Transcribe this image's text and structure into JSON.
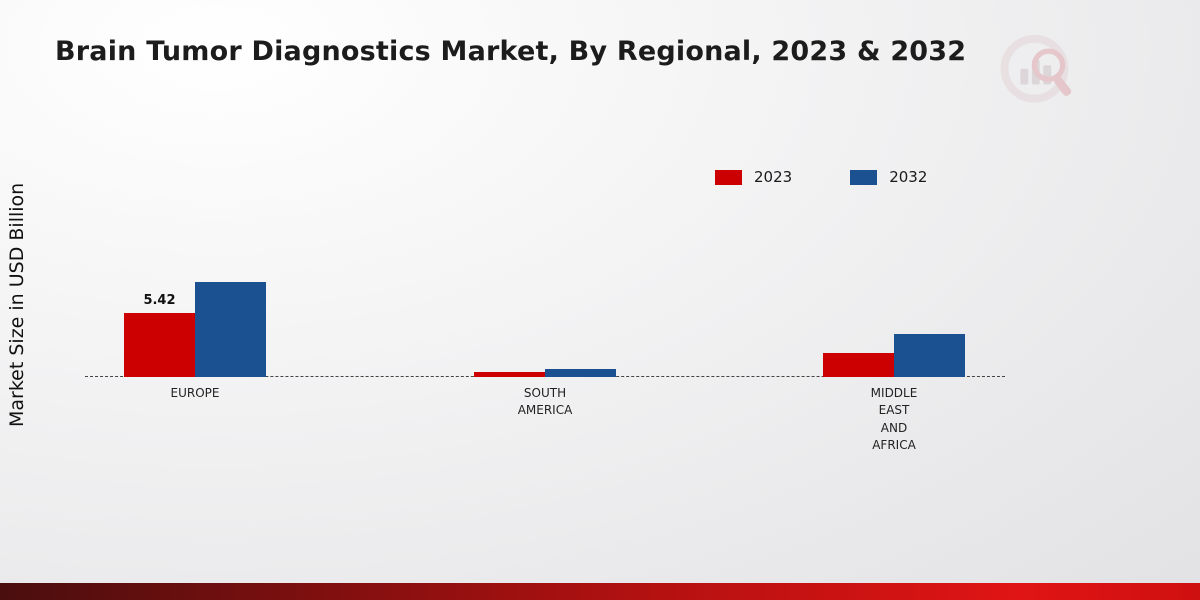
{
  "chart_data": {
    "type": "bar",
    "title": "Brain Tumor Diagnostics Market, By Regional, 2023 & 2032",
    "xlabel": "",
    "ylabel": "Market Size in USD Billion",
    "categories": [
      "EUROPE",
      "SOUTH AMERICA",
      "MIDDLE EAST AND AFRICA"
    ],
    "series": [
      {
        "name": "2023",
        "color": "#cc0001",
        "values": [
          5.42,
          0.45,
          2.05
        ],
        "data_labels": [
          "5.42",
          "",
          ""
        ]
      },
      {
        "name": "2032",
        "color": "#1b5191",
        "values": [
          8.0,
          0.65,
          3.6
        ],
        "data_labels": [
          "",
          "",
          ""
        ]
      }
    ],
    "ylim": [
      0,
      20
    ],
    "grid": false,
    "baseline_style": "dashed",
    "legend_position": "top-right"
  },
  "branding": {
    "logo_name": "market-research-logo",
    "accent_bar_colors": [
      "#4a0e0e",
      "#e01414"
    ]
  }
}
